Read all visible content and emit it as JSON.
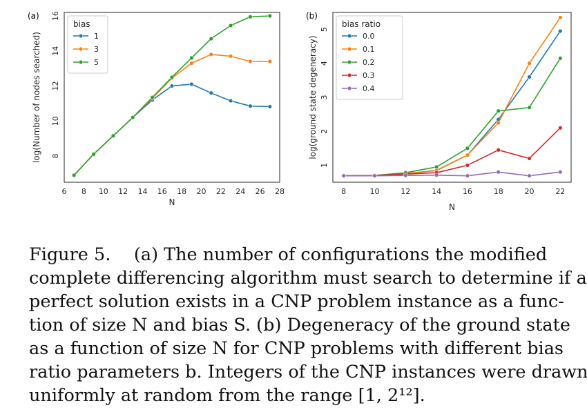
{
  "chart_data": [
    {
      "type": "line",
      "panel_label": "(a)",
      "xlabel": "N",
      "ylabel": "log(Number of nodes searched)",
      "xlim": [
        6,
        28
      ],
      "ylim": [
        6.5,
        16.2
      ],
      "xticks": [
        6,
        8,
        10,
        12,
        14,
        16,
        18,
        20,
        22,
        24,
        26,
        28
      ],
      "yticks": [
        8,
        10,
        12,
        14,
        16
      ],
      "grid": false,
      "legend_title": "bias",
      "legend_position": "top-left",
      "series": [
        {
          "name": "1",
          "color": "#1f77b4",
          "x": [
            7,
            9,
            11,
            13,
            15,
            17,
            19,
            21,
            23,
            25,
            27
          ],
          "y": [
            6.9,
            8.1,
            9.15,
            10.2,
            11.2,
            12.0,
            12.1,
            11.6,
            11.15,
            10.85,
            10.82
          ]
        },
        {
          "name": "3",
          "color": "#ff7f0e",
          "x": [
            7,
            9,
            11,
            13,
            15,
            17,
            19,
            21,
            23,
            25,
            27
          ],
          "y": [
            6.9,
            8.1,
            9.15,
            10.2,
            11.3,
            12.45,
            13.3,
            13.8,
            13.7,
            13.4,
            13.4
          ]
        },
        {
          "name": "5",
          "color": "#2ca02c",
          "x": [
            7,
            9,
            11,
            13,
            15,
            17,
            19,
            21,
            23,
            25,
            27
          ],
          "y": [
            6.9,
            8.1,
            9.15,
            10.2,
            11.35,
            12.5,
            13.6,
            14.7,
            15.45,
            15.95,
            16.0
          ]
        }
      ]
    },
    {
      "type": "line",
      "panel_label": "(b)",
      "xlabel": "N",
      "ylabel": "log(ground state degeneracy)",
      "xlim": [
        7.3,
        22.7
      ],
      "ylim": [
        0.5,
        5.5
      ],
      "xticks": [
        8,
        10,
        12,
        14,
        16,
        18,
        20,
        22
      ],
      "yticks": [
        1,
        2,
        3,
        4,
        5
      ],
      "grid": false,
      "legend_title": "bias ratio",
      "legend_position": "top-left",
      "series": [
        {
          "name": "0.0",
          "color": "#1f77b4",
          "x": [
            8,
            10,
            12,
            14,
            16,
            18,
            20,
            22
          ],
          "y": [
            0.69,
            0.7,
            0.75,
            0.85,
            1.3,
            2.35,
            3.6,
            4.95
          ]
        },
        {
          "name": "0.1",
          "color": "#ff7f0e",
          "x": [
            8,
            10,
            12,
            14,
            16,
            18,
            20,
            22
          ],
          "y": [
            0.69,
            0.7,
            0.76,
            0.84,
            1.3,
            2.25,
            4.0,
            5.35
          ]
        },
        {
          "name": "0.2",
          "color": "#2ca02c",
          "x": [
            8,
            10,
            12,
            14,
            16,
            18,
            20,
            22
          ],
          "y": [
            0.69,
            0.7,
            0.78,
            0.95,
            1.5,
            2.6,
            2.7,
            4.15
          ]
        },
        {
          "name": "0.3",
          "color": "#d62728",
          "x": [
            8,
            10,
            12,
            14,
            16,
            18,
            20,
            22
          ],
          "y": [
            0.69,
            0.7,
            0.74,
            0.78,
            1.0,
            1.45,
            1.2,
            2.1
          ]
        },
        {
          "name": "0.4",
          "color": "#9467bd",
          "x": [
            8,
            10,
            12,
            14,
            16,
            18,
            20,
            22
          ],
          "y": [
            0.69,
            0.69,
            0.7,
            0.71,
            0.69,
            0.8,
            0.69,
            0.8
          ]
        }
      ]
    }
  ],
  "caption": {
    "lines": [
      "Figure 5.  (a) The number of configurations the modified",
      "complete differencing algorithm must search to determine if a",
      "perfect solution exists in a CNP problem instance as a func-",
      "tion of size N and bias S. (b) Degeneracy of the ground state",
      "as a function of size N for CNP problems with different bias",
      "ratio parameters b. Integers of the CNP instances were drawn",
      "uniformly at random from the range [1, 2¹²]."
    ]
  }
}
